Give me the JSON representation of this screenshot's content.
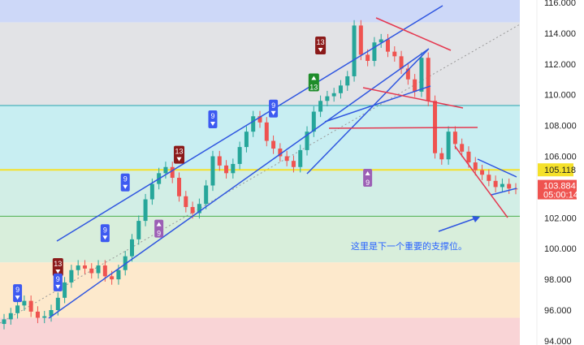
{
  "chart_data": {
    "type": "candlestick",
    "ylim": [
      94,
      116
    ],
    "yticks": [
      "116.000",
      "114.000",
      "112.000",
      "110.000",
      "108.000",
      "106.000",
      "102.000",
      "100.000",
      "98.000",
      "96.000",
      "94.000"
    ],
    "closes": [
      95.4,
      95.8,
      96.3,
      96.6,
      95.9,
      95.5,
      95.6,
      96.0,
      96.8,
      97.8,
      98.6,
      98.9,
      98.7,
      98.4,
      98.9,
      98.2,
      98.0,
      98.6,
      99.5,
      100.6,
      101.8,
      103.2,
      104.2,
      104.9,
      105.3,
      104.6,
      103.4,
      102.7,
      102.3,
      102.9,
      104.1,
      106.0,
      105.4,
      104.9,
      105.5,
      106.6,
      107.6,
      108.6,
      108.2,
      107.0,
      106.5,
      106.0,
      105.7,
      105.3,
      106.4,
      107.6,
      108.9,
      109.6,
      109.9,
      110.1,
      110.6,
      111.2,
      114.5,
      112.6,
      112.2,
      113.4,
      113.6,
      112.8,
      112.5,
      111.7,
      111.0,
      110.2,
      112.4,
      109.6,
      106.2,
      105.8,
      107.6,
      106.8,
      106.3,
      105.6,
      105.1,
      104.8,
      104.4,
      104.0,
      104.2,
      103.9,
      103.884
    ],
    "bands": [
      {
        "from": 114.7,
        "to": 116.5,
        "color": "#cdd8f8"
      },
      {
        "from": 109.3,
        "to": 114.7,
        "color": "#e2e3e6"
      },
      {
        "from": 105.118,
        "to": 109.3,
        "color": "#c8eef2"
      },
      {
        "from": 102.1,
        "to": 105.118,
        "color": "#d2eee6"
      },
      {
        "from": 99.1,
        "to": 102.1,
        "color": "#d8eedb"
      },
      {
        "from": 95.5,
        "to": 99.1,
        "color": "#fde9cc"
      },
      {
        "from": 93.5,
        "to": 95.5,
        "color": "#f9d4d6"
      }
    ],
    "levels": [
      {
        "value": 105.118,
        "label": "105.118",
        "color": "#f5e12a"
      },
      {
        "value": 109.3,
        "color": "#26a6b0"
      },
      {
        "value": 102.1,
        "color": "#4caf50"
      }
    ],
    "last_price": {
      "value": "103.884",
      "countdown": "05:00:14",
      "color": "#ef5350"
    },
    "up_color": "#26a69a",
    "down_color": "#ef5350",
    "markers": [
      {
        "label": "9",
        "type": "sell",
        "idx": 2,
        "price": 97.1
      },
      {
        "label": "13",
        "type": "sell13",
        "idx": 8,
        "price": 98.8
      },
      {
        "label": "9",
        "type": "sell",
        "idx": 8,
        "price": 97.8
      },
      {
        "label": "9",
        "type": "sell",
        "idx": 15,
        "price": 101.0
      },
      {
        "label": "9",
        "type": "sell",
        "idx": 18,
        "price": 104.3
      },
      {
        "label": "13",
        "type": "sell13",
        "idx": 26,
        "price": 106.1
      },
      {
        "label": "9",
        "type": "buy",
        "idx": 23,
        "price": 101.3
      },
      {
        "label": "9",
        "type": "sell",
        "idx": 31,
        "price": 108.4
      },
      {
        "label": "9",
        "type": "sell",
        "idx": 40,
        "price": 109.1
      },
      {
        "label": "13",
        "type": "sell13",
        "idx": 47,
        "price": 113.2
      },
      {
        "label": "13",
        "type": "buy13",
        "idx": 46,
        "price": 110.8
      },
      {
        "label": "9",
        "type": "buy",
        "idx": 54,
        "price": 104.6
      }
    ],
    "annotation": "这里是下一个重要的支撑位。"
  }
}
